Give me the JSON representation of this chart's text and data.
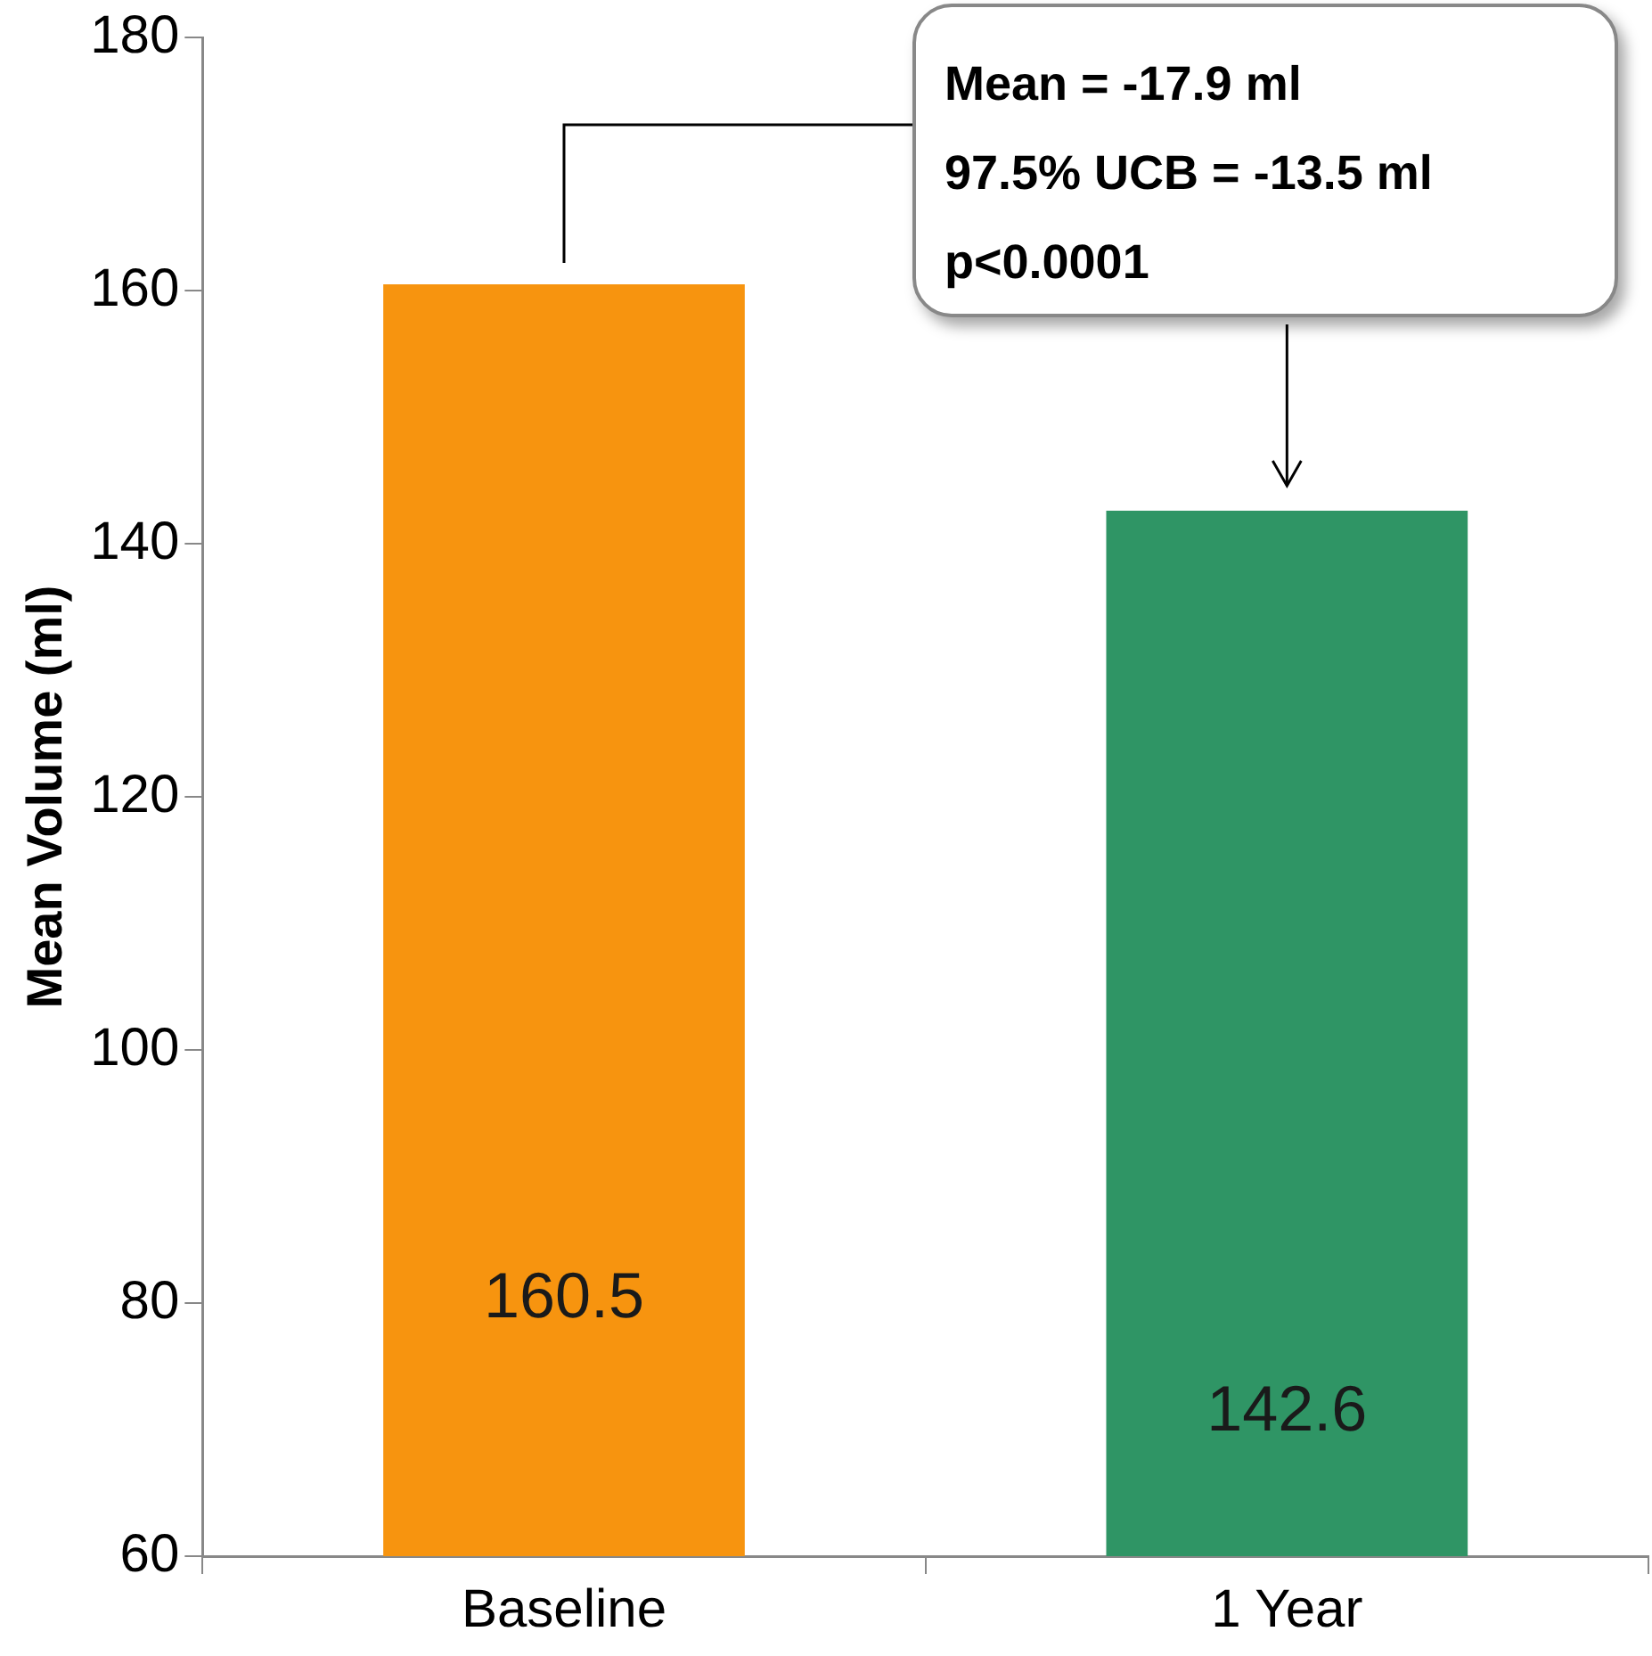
{
  "chart_data": {
    "type": "bar",
    "ylabel": "Mean Volume (ml)",
    "categories": [
      "Baseline",
      "1 Year"
    ],
    "values": [
      160.5,
      142.6
    ],
    "colors": [
      "#f7940f",
      "#2f9565"
    ],
    "ylim": [
      60,
      180
    ],
    "yticks": [
      60,
      80,
      100,
      120,
      140,
      160,
      180
    ],
    "grid": false,
    "legend": false,
    "data_labels": true,
    "annotations": [
      "Mean = -17.9 ml",
      "97.5% UCB = -13.5 ml",
      "p<0.0001"
    ]
  }
}
